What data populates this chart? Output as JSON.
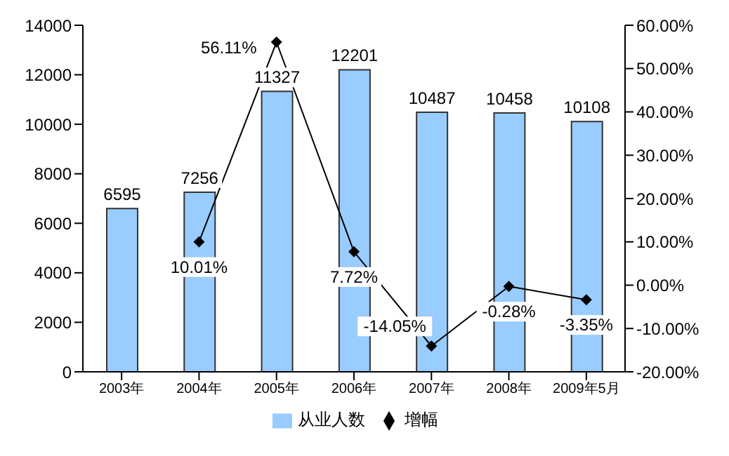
{
  "chart_data": {
    "type": "bar",
    "categories": [
      "2003年",
      "2004年",
      "2005年",
      "2006年",
      "2007年",
      "2008年",
      "2009年5月"
    ],
    "series": [
      {
        "name": "从业人数",
        "color": "#99ccff",
        "values": [
          6595,
          7256,
          11327,
          12201,
          10487,
          10458,
          10108
        ],
        "value_labels": [
          "6595",
          "7256",
          "11327",
          "12201",
          "10487",
          "10458",
          "10108"
        ]
      },
      {
        "name": "增幅",
        "type": "line",
        "axis": "y2",
        "color": "#000000",
        "marker": "diamond",
        "values": [
          null,
          10.01,
          56.11,
          7.72,
          -14.05,
          -0.28,
          -3.35
        ],
        "value_labels": [
          null,
          "10.01%",
          "56.11%",
          "7.72%",
          "-14.05%",
          "-0.28%",
          "-3.35%"
        ]
      }
    ],
    "ylim": [
      0,
      14000
    ],
    "yticks": [
      0,
      2000,
      4000,
      6000,
      8000,
      10000,
      12000,
      14000
    ],
    "y2lim": [
      -20,
      60
    ],
    "y2ticks": [
      {
        "value": -20,
        "label": "-20.00%"
      },
      {
        "value": -10,
        "label": "-10.00%"
      },
      {
        "value": 0,
        "label": "0.00%"
      },
      {
        "value": 10,
        "label": "10.00%"
      },
      {
        "value": 20,
        "label": "20.00%"
      },
      {
        "value": 30,
        "label": "30.00%"
      },
      {
        "value": 40,
        "label": "40.00%"
      },
      {
        "value": 50,
        "label": "50.00%"
      },
      {
        "value": 60,
        "label": "60.00%"
      }
    ],
    "grid": false,
    "legend": "bottom"
  }
}
